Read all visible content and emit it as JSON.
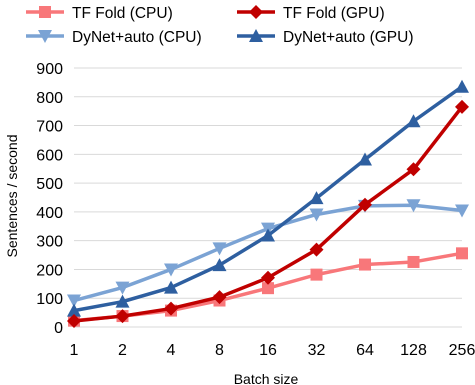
{
  "chart_data": {
    "type": "line",
    "title": "",
    "xlabel": "Batch size",
    "ylabel": "Sentences / second",
    "categories": [
      "1",
      "2",
      "4",
      "8",
      "16",
      "32",
      "64",
      "128",
      "256"
    ],
    "ylim": [
      0,
      900
    ],
    "yticks": [
      0,
      100,
      200,
      300,
      400,
      500,
      600,
      700,
      800,
      900
    ],
    "grid": "horizontal",
    "legend_position": "top",
    "series": [
      {
        "name": "TF Fold (CPU)",
        "color": "#f8777a",
        "marker": "square",
        "values": [
          22,
          38,
          57,
          92,
          135,
          182,
          217,
          226,
          256
        ]
      },
      {
        "name": "TF Fold (GPU)",
        "color": "#c00000",
        "marker": "diamond",
        "values": [
          21,
          38,
          64,
          104,
          171,
          269,
          425,
          548,
          765
        ]
      },
      {
        "name": "DyNet+auto (CPU)",
        "color": "#7ba3d4",
        "marker": "triangle-down",
        "values": [
          92,
          137,
          200,
          273,
          342,
          391,
          421,
          423,
          405
        ]
      },
      {
        "name": "DyNet+auto (GPU)",
        "color": "#2e5fa0",
        "marker": "triangle-up",
        "values": [
          57,
          88,
          137,
          215,
          318,
          448,
          582,
          715,
          835
        ]
      }
    ]
  }
}
